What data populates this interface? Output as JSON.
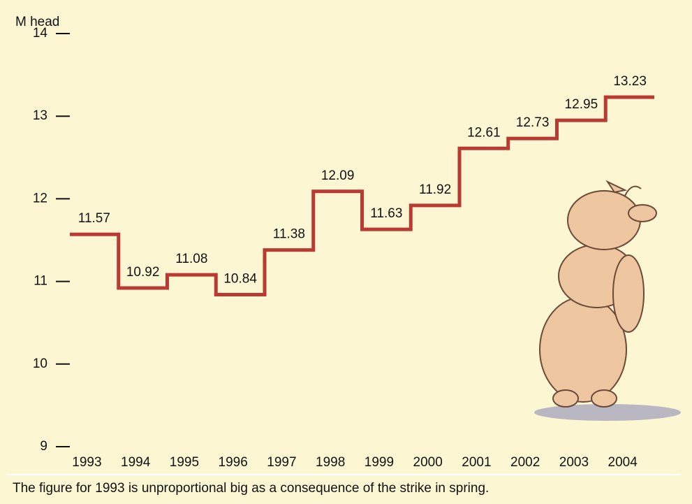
{
  "chart_data": {
    "type": "step",
    "y_label": "M head",
    "categories": [
      "1993",
      "1994",
      "1995",
      "1996",
      "1997",
      "1998",
      "1999",
      "2000",
      "2001",
      "2002",
      "2003",
      "2004"
    ],
    "values": [
      11.57,
      10.92,
      11.08,
      10.84,
      11.38,
      12.09,
      11.63,
      11.92,
      12.61,
      12.73,
      12.95,
      13.23
    ],
    "color": "#b93a32",
    "ylim": [
      9,
      14
    ],
    "yticks": [
      9,
      10,
      11,
      12,
      13,
      14
    ],
    "footnote": "The figure for 1993 is unproportional big as a consequence of the strike in spring."
  }
}
